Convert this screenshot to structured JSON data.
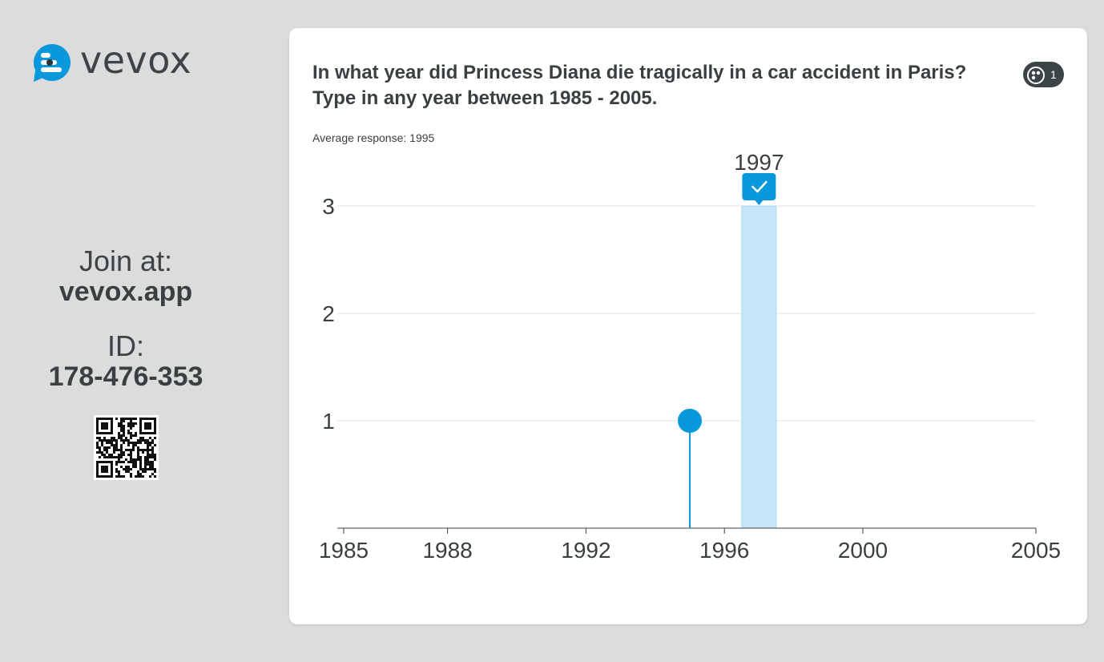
{
  "brand": {
    "name": "vevox"
  },
  "join": {
    "label": "Join at:",
    "url": "vevox.app",
    "id_label": "ID:",
    "id_value": "178-476-353"
  },
  "question": {
    "title": "In what year did Princess Diana die tragically in a car accident in Paris?\nType in any year between 1985 - 2005.",
    "participants_icon": "participants-icon",
    "participant_count": "1",
    "average": "Average response: 1995"
  },
  "colors": {
    "accent": "#0a98dc",
    "highlight": "#c6e6f7",
    "text": "#3a3f42",
    "badge": "#3d4448"
  },
  "chart_data": {
    "type": "bar",
    "xlim": [
      1985,
      2005
    ],
    "x_ticks": [
      1985,
      1988,
      1992,
      1996,
      2000,
      2005
    ],
    "ylim": [
      0,
      3
    ],
    "y_ticks": [
      1,
      2,
      3
    ],
    "grid": true,
    "correct_answer": {
      "year": 1997,
      "label": "1997",
      "count": 3,
      "icon": "checkmark-icon"
    },
    "responses": [
      {
        "year": 1995,
        "count": 1
      }
    ]
  }
}
